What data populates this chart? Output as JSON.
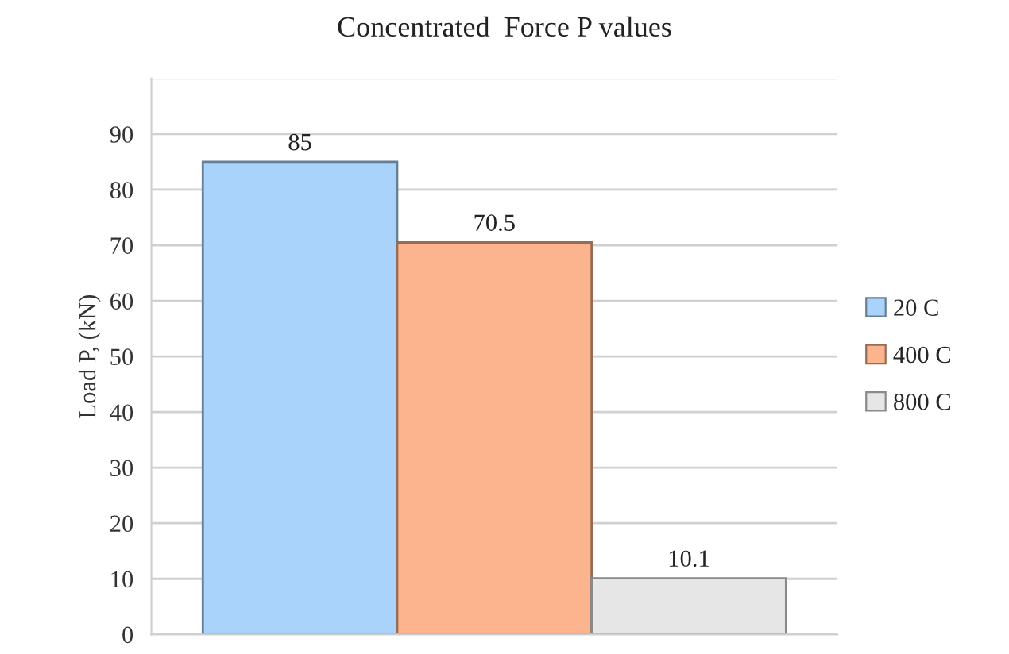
{
  "chart_data": {
    "type": "bar",
    "title": "Concentrated  Force P values",
    "ylabel": "Load P, (kN)",
    "categories": [
      null
    ],
    "series": [
      {
        "name": "20 C",
        "color": "#a9d3fb",
        "values": [
          85
        ]
      },
      {
        "name": "400 C",
        "color": "#fbb48d",
        "values": [
          70.5
        ]
      },
      {
        "name": "800 C",
        "color": "#e6e6e6",
        "values": [
          10.1
        ]
      }
    ],
    "ylim": [
      0,
      100
    ],
    "yticks": [
      0,
      10,
      20,
      30,
      40,
      50,
      60,
      70,
      80,
      90,
      {
        "value": 100,
        "label": null
      }
    ],
    "grid": "y",
    "legend": "right",
    "data_labels": true
  }
}
